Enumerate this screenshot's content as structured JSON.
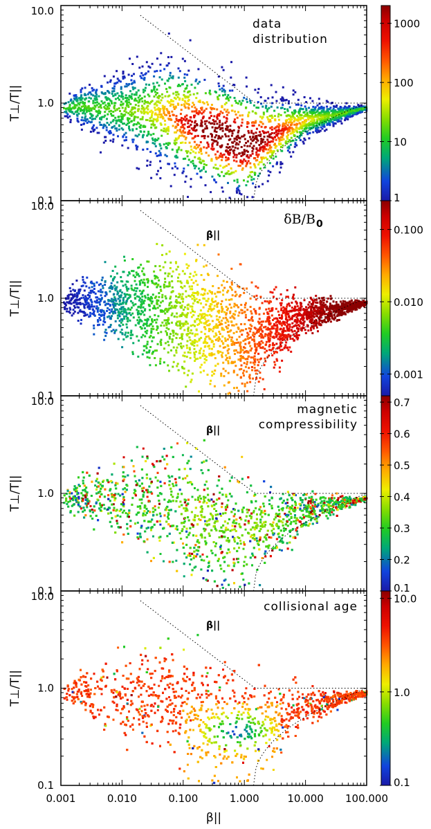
{
  "chart_data": [
    {
      "type": "heatmap",
      "panel": "data-distribution",
      "annotation": [
        "data",
        "distribution"
      ],
      "ylabel": "T⊥/T||",
      "xlabel": "",
      "xscale": "log",
      "yscale": "log",
      "xlim": [
        0.001,
        100.0
      ],
      "ylim": [
        0.1,
        10.0
      ],
      "yticks": [
        "0.1",
        "1.0",
        "10.0"
      ],
      "colorbar": {
        "scale": "log",
        "range": [
          1,
          2000
        ],
        "ticks": [
          "1",
          "10",
          "100",
          "1000"
        ],
        "tick_values": [
          1,
          10,
          100,
          1000
        ]
      },
      "curve_label": ""
    },
    {
      "type": "heatmap",
      "panel": "fluctuation-amplitude",
      "annotation": [
        "δB/B",
        "0"
      ],
      "ylabel": "T⊥/T||",
      "xlabel": "",
      "xscale": "log",
      "yscale": "log",
      "xlim": [
        0.001,
        100.0
      ],
      "ylim": [
        0.1,
        10.0
      ],
      "yticks": [
        "0.1",
        "1.0",
        "10.0"
      ],
      "colorbar": {
        "scale": "log",
        "range": [
          0.0005,
          0.25
        ],
        "ticks": [
          "0.001",
          "0.010",
          "0.100"
        ],
        "tick_values": [
          0.001,
          0.01,
          0.1
        ]
      },
      "curve_label": "β||"
    },
    {
      "type": "heatmap",
      "panel": "magnetic-compressibility",
      "annotation": [
        "magnetic",
        "compressibility"
      ],
      "ylabel": "T⊥/T||",
      "xlabel": "",
      "xscale": "log",
      "yscale": "log",
      "xlim": [
        0.001,
        100.0
      ],
      "ylim": [
        0.1,
        10.0
      ],
      "yticks": [
        "0.1",
        "1.0",
        "10.0"
      ],
      "colorbar": {
        "scale": "linear",
        "range": [
          0.1,
          0.72
        ],
        "ticks": [
          "0.1",
          "0.2",
          "0.3",
          "0.4",
          "0.5",
          "0.6",
          "0.7"
        ],
        "tick_values": [
          0.1,
          0.2,
          0.3,
          0.4,
          0.5,
          0.6,
          0.7
        ]
      },
      "curve_label": "β||"
    },
    {
      "type": "heatmap",
      "panel": "collisional-age",
      "annotation": [
        "collisional age"
      ],
      "ylabel": "T⊥/T||",
      "xlabel": "β||",
      "xscale": "log",
      "yscale": "log",
      "xlim": [
        0.001,
        100.0
      ],
      "ylim": [
        0.1,
        10.0
      ],
      "yticks": [
        "0.1",
        "1.0",
        "10.0"
      ],
      "xticks": [
        "0.001",
        "0.010",
        "0.100",
        "1.000",
        "10.000",
        "100.000"
      ],
      "colorbar": {
        "scale": "log",
        "range": [
          0.1,
          12
        ],
        "ticks": [
          "0.1",
          "1.0",
          "10.0"
        ],
        "tick_values": [
          0.1,
          1.0,
          10.0
        ]
      },
      "curve_label": "β||"
    }
  ],
  "colormap_stops": [
    "#1a1aa8",
    "#1144dd",
    "#00a878",
    "#22cc22",
    "#88dd00",
    "#eeee00",
    "#ffaa00",
    "#ff5500",
    "#ee1100",
    "#cc0000",
    "#8b0000"
  ]
}
